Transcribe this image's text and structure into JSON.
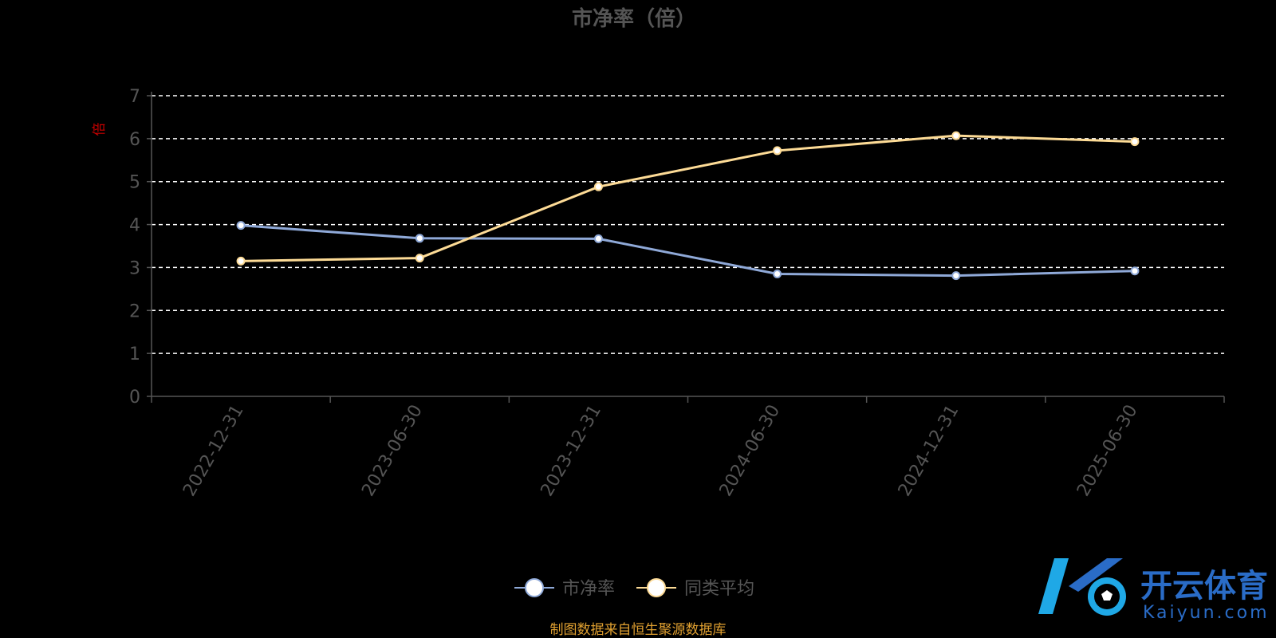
{
  "colors": {
    "background": "#000000",
    "title": "#555555",
    "axis": "#555555",
    "grid": "#ffffff",
    "series1": "#8fa9d8",
    "series2": "#fddb96",
    "ylabel": "#cc0000",
    "source": "#e0a030",
    "logo_text": "#2a6cc7",
    "logo_ball": "#1fa8e6"
  },
  "chart_data": {
    "type": "line",
    "title": "市净率（倍）",
    "ylabel": "倍",
    "categories": [
      "2022-12-31",
      "2023-06-30",
      "2023-12-31",
      "2024-06-30",
      "2024-12-31",
      "2025-06-30"
    ],
    "ylim": [
      0,
      7
    ],
    "yticks": [
      0,
      1,
      2,
      3,
      4,
      5,
      6,
      7
    ],
    "grid": true,
    "legend_position": "bottom-center",
    "series": [
      {
        "name": "市净率",
        "values": [
          3.98,
          3.68,
          3.67,
          2.85,
          2.81,
          2.92
        ]
      },
      {
        "name": "同类平均",
        "values": [
          3.15,
          3.22,
          4.88,
          5.72,
          6.07,
          5.93
        ]
      }
    ]
  },
  "footer": {
    "source": "制图数据来自恒生聚源数据库"
  },
  "watermark": {
    "name": "开云体育",
    "domain": "Kaiyun.com"
  }
}
